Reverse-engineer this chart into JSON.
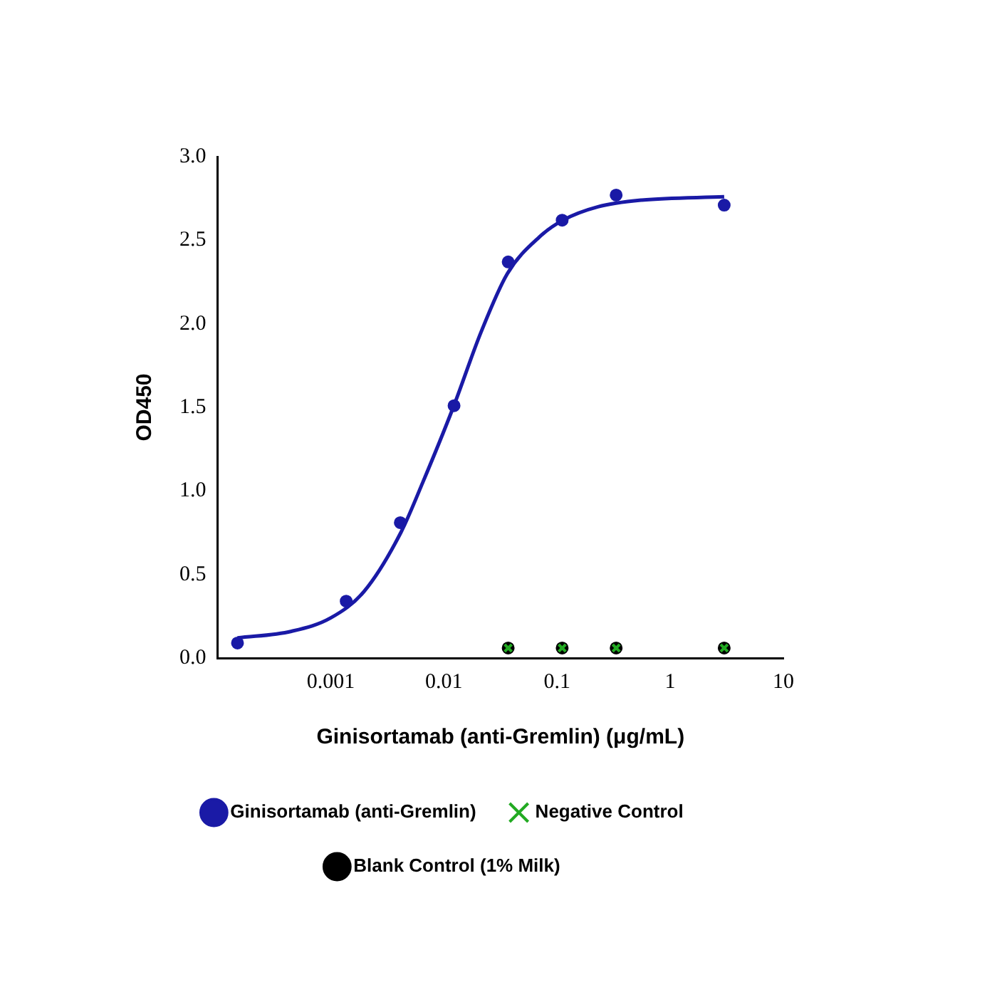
{
  "chart_data": {
    "type": "scatter",
    "xlabel": "Ginisortamab (anti-Gremlin) (μg/mL)",
    "ylabel": "OD450",
    "log": "x",
    "xlim": [
      0.0001,
      10
    ],
    "xticks": [
      0.001,
      0.01,
      0.1,
      1,
      10
    ],
    "ylim": [
      0,
      3
    ],
    "yticks": [
      {
        "value": 0,
        "label": "0.0"
      },
      {
        "value": 0.5,
        "label": "0.5"
      },
      {
        "value": 1,
        "label": "1.0"
      },
      {
        "value": 1.5,
        "label": "1.5"
      },
      {
        "value": 2,
        "label": "2.0"
      },
      {
        "value": 2.5,
        "label": "2.5"
      },
      {
        "value": 3,
        "label": "3.0"
      }
    ],
    "grid": false,
    "legend": "bottom",
    "series": [
      {
        "name": "Ginisortamab (anti-Gremlin)",
        "color": "#1a1aa6",
        "marker": "circle",
        "x": [
          0.00015,
          0.00137,
          0.00412,
          0.0123,
          0.037,
          0.111,
          0.333,
          3
        ],
        "values": [
          0.09,
          0.34,
          0.81,
          1.51,
          2.37,
          2.62,
          2.77,
          2.71
        ]
      },
      {
        "name": "Negative Control",
        "color": "#22aa22",
        "marker": "cross",
        "x": [
          0.037,
          0.111,
          0.333,
          3
        ],
        "values": [
          0.06,
          0.06,
          0.06,
          0.06
        ]
      },
      {
        "name": "Blank Control (1% Milk)",
        "color": "#000000",
        "marker": "circle",
        "x": [
          0.037,
          0.111,
          0.333,
          3
        ],
        "values": [
          0.06,
          0.06,
          0.06,
          0.06
        ]
      },
      {
        "type": "line",
        "color": "#1a1aa6",
        "marker": "none",
        "line_style": "solid",
        "x": [
          0.00015,
          0.00045,
          0.001,
          0.00198,
          0.00416,
          0.0065,
          0.0121,
          0.0213,
          0.0364,
          0.07,
          0.113,
          0.23,
          0.56,
          3
        ],
        "values": [
          0.12,
          0.16,
          0.24,
          0.4,
          0.75,
          1.05,
          1.5,
          1.95,
          2.3,
          2.52,
          2.62,
          2.7,
          2.74,
          2.76
        ]
      }
    ]
  }
}
